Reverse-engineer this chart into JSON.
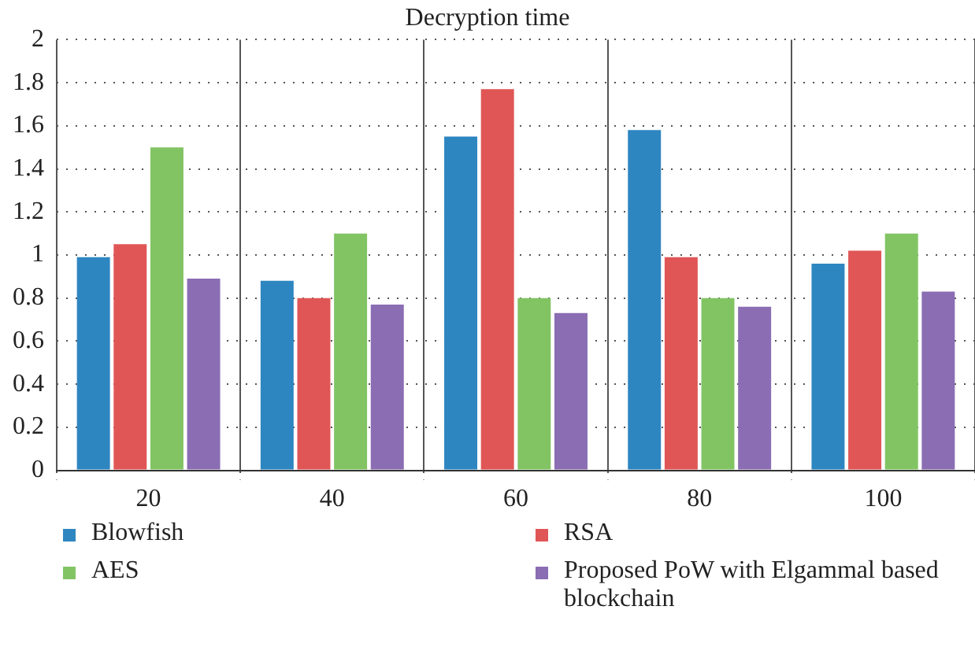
{
  "chart_data": {
    "type": "bar",
    "title": "Decryption time",
    "categories": [
      "20",
      "40",
      "60",
      "80",
      "100"
    ],
    "series": [
      {
        "name": "Blowfish",
        "color": "#2e86c1",
        "values": [
          0.99,
          0.88,
          1.55,
          1.58,
          0.96
        ]
      },
      {
        "name": "RSA",
        "color": "#e05656",
        "values": [
          1.05,
          0.8,
          1.77,
          0.99,
          1.02
        ]
      },
      {
        "name": "AES",
        "color": "#82c464",
        "values": [
          1.5,
          1.1,
          0.8,
          0.8,
          1.1
        ]
      },
      {
        "name": "Proposed PoW with Elgammal based blockchain",
        "color": "#8a6db3",
        "values": [
          0.89,
          0.77,
          0.73,
          0.76,
          0.83
        ]
      }
    ],
    "ylim": [
      0,
      2
    ],
    "yticks": [
      0,
      0.2,
      0.4,
      0.6,
      0.8,
      1,
      1.2,
      1.4,
      1.6,
      1.8,
      2
    ],
    "grid": true,
    "legend": "bottom"
  }
}
